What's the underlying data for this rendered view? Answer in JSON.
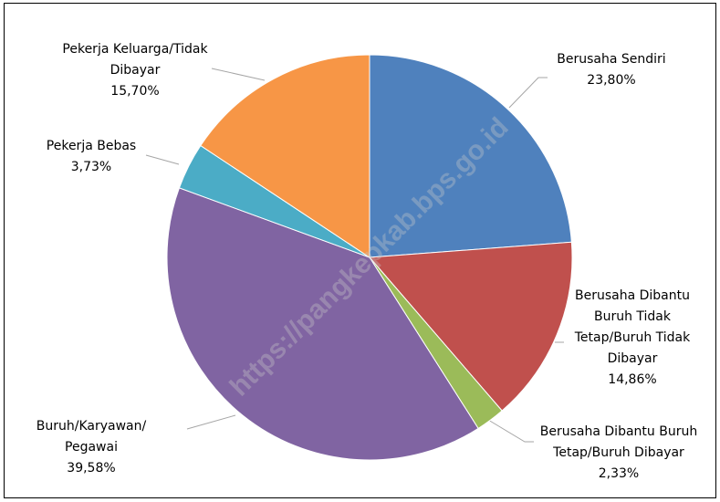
{
  "watermark": "https://pangkepkab.bps.go.id",
  "chart_data": {
    "type": "pie",
    "categories": [
      "Berusaha Sendiri",
      "Berusaha Dibantu Buruh Tidak Tetap/Buruh Tidak Dibayar",
      "Berusaha Dibantu Buruh Tetap/Buruh Dibayar",
      "Buruh/Karyawan/ Pegawai",
      "Pekerja Bebas",
      "Pekerja Keluarga/Tidak Dibayar"
    ],
    "values": [
      23.8,
      14.86,
      2.33,
      39.58,
      3.73,
      15.7
    ],
    "value_labels": [
      "23,80%",
      "14,86%",
      "2,33%",
      "39,58%",
      "3,73%",
      "15,70%"
    ],
    "colors": [
      "#4f81bd",
      "#c0504d",
      "#9bbb59",
      "#8064a2",
      "#4bacc6",
      "#f79646"
    ]
  }
}
